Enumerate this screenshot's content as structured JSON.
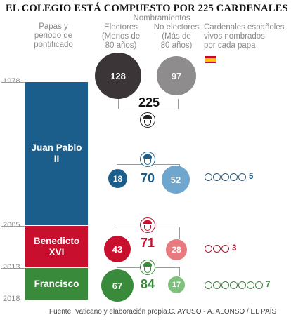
{
  "title": "EL COLEGIO ESTÁ COMPUESTO POR 225 CARDENALES",
  "headers": {
    "left": "Papas y\nperiodo de\npontificado",
    "group": "Nombramientos",
    "electors": "Electores\n(Menos de\n80 años)",
    "non_electors": "No electores\n(Más de\n80 años)",
    "spanish": "Cardenales españoles\nvivos nombrados\npor cada papa"
  },
  "flag_icon": "spain-flag-icon",
  "totals": {
    "electors": "128",
    "non_electors": "97",
    "all": "225"
  },
  "years": [
    "1978",
    "2005",
    "2013",
    "2018"
  ],
  "popes": [
    {
      "name": "Juan Pablo\nII",
      "color": "#1b5e8c",
      "electors": "18",
      "total": "70",
      "non_electors": "52",
      "spanish": "5",
      "light": "#6ea6cd"
    },
    {
      "name": "Benedicto\nXVI",
      "color": "#c8102e",
      "electors": "43",
      "total": "71",
      "non_electors": "28",
      "spanish": "3",
      "light": "#e8797e"
    },
    {
      "name": "Francisco",
      "color": "#3a8a3c",
      "electors": "67",
      "total": "84",
      "non_electors": "17",
      "spanish": "7",
      "light": "#7fc07f"
    }
  ],
  "colors": {
    "electors_total": "#3b3537",
    "non_electors_total": "#8f8c8d"
  },
  "footer": {
    "source": "Fuente: Vaticano y elaboración propia.",
    "credits": "C. AYUSO - A. ALONSO / EL PAÍS"
  }
}
